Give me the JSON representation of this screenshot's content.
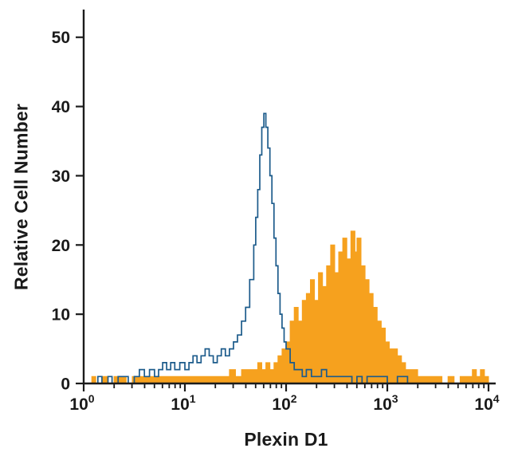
{
  "chart_data": {
    "type": "area",
    "subtype": "flow-cytometry-overlay-histogram",
    "title": "",
    "xlabel": "Plexin D1",
    "ylabel": "Relative Cell Number",
    "x_scale": "log10",
    "x_log_range": [
      0,
      4
    ],
    "y_range": [
      0,
      54
    ],
    "y_ticks": [
      0,
      10,
      20,
      30,
      40,
      50
    ],
    "x_tick_base": "10",
    "x_tick_exponents": [
      "0",
      "1",
      "2",
      "3",
      "4"
    ],
    "grid": "off",
    "legend": "none",
    "axis_color": "#1c1c1c",
    "series": [
      {
        "name": "filled-stained-population",
        "style": "filled",
        "color": "#f6a11e",
        "points": [
          [
            0.0,
            0
          ],
          [
            0.08,
            1
          ],
          [
            0.12,
            0
          ],
          [
            0.18,
            1
          ],
          [
            0.24,
            0
          ],
          [
            0.3,
            1
          ],
          [
            0.36,
            1
          ],
          [
            0.42,
            0
          ],
          [
            0.48,
            1
          ],
          [
            0.54,
            1
          ],
          [
            0.6,
            1
          ],
          [
            0.66,
            1
          ],
          [
            0.72,
            1
          ],
          [
            0.78,
            1
          ],
          [
            0.84,
            1
          ],
          [
            0.9,
            1
          ],
          [
            0.96,
            1
          ],
          [
            1.02,
            1
          ],
          [
            1.08,
            1
          ],
          [
            1.14,
            1
          ],
          [
            1.2,
            1
          ],
          [
            1.26,
            1
          ],
          [
            1.32,
            1
          ],
          [
            1.38,
            1
          ],
          [
            1.44,
            2
          ],
          [
            1.5,
            1
          ],
          [
            1.56,
            2
          ],
          [
            1.62,
            2
          ],
          [
            1.68,
            2
          ],
          [
            1.72,
            3
          ],
          [
            1.76,
            2
          ],
          [
            1.8,
            3
          ],
          [
            1.84,
            2
          ],
          [
            1.88,
            3
          ],
          [
            1.92,
            4
          ],
          [
            1.96,
            5
          ],
          [
            2.0,
            6
          ],
          [
            2.04,
            9
          ],
          [
            2.08,
            11
          ],
          [
            2.12,
            9
          ],
          [
            2.16,
            12
          ],
          [
            2.2,
            13
          ],
          [
            2.24,
            15
          ],
          [
            2.28,
            12
          ],
          [
            2.32,
            16
          ],
          [
            2.36,
            14
          ],
          [
            2.4,
            17
          ],
          [
            2.44,
            20
          ],
          [
            2.48,
            16
          ],
          [
            2.52,
            19
          ],
          [
            2.56,
            21
          ],
          [
            2.6,
            18
          ],
          [
            2.64,
            22
          ],
          [
            2.68,
            19
          ],
          [
            2.7,
            21
          ],
          [
            2.74,
            17
          ],
          [
            2.78,
            15
          ],
          [
            2.82,
            13
          ],
          [
            2.86,
            11
          ],
          [
            2.9,
            9
          ],
          [
            2.94,
            8
          ],
          [
            2.98,
            6
          ],
          [
            3.02,
            5
          ],
          [
            3.06,
            5
          ],
          [
            3.1,
            4
          ],
          [
            3.14,
            3
          ],
          [
            3.18,
            2
          ],
          [
            3.24,
            2
          ],
          [
            3.3,
            1
          ],
          [
            3.36,
            1
          ],
          [
            3.42,
            1
          ],
          [
            3.48,
            1
          ],
          [
            3.54,
            0
          ],
          [
            3.6,
            1
          ],
          [
            3.66,
            0
          ],
          [
            3.72,
            1
          ],
          [
            3.78,
            1
          ],
          [
            3.84,
            2
          ],
          [
            3.88,
            1
          ],
          [
            3.92,
            2
          ],
          [
            3.96,
            1
          ],
          [
            4.0,
            0
          ]
        ]
      },
      {
        "name": "open-control-population",
        "style": "open",
        "color": "#1c5b8b",
        "points": [
          [
            0.0,
            0
          ],
          [
            0.1,
            0
          ],
          [
            0.14,
            1
          ],
          [
            0.18,
            0
          ],
          [
            0.24,
            1
          ],
          [
            0.28,
            0
          ],
          [
            0.34,
            1
          ],
          [
            0.4,
            1
          ],
          [
            0.44,
            0
          ],
          [
            0.5,
            1
          ],
          [
            0.55,
            2
          ],
          [
            0.6,
            1
          ],
          [
            0.65,
            2
          ],
          [
            0.7,
            1
          ],
          [
            0.74,
            2
          ],
          [
            0.78,
            3
          ],
          [
            0.82,
            2
          ],
          [
            0.86,
            3
          ],
          [
            0.9,
            2
          ],
          [
            0.95,
            3
          ],
          [
            1.0,
            2
          ],
          [
            1.04,
            3
          ],
          [
            1.08,
            4
          ],
          [
            1.12,
            3
          ],
          [
            1.16,
            4
          ],
          [
            1.2,
            5
          ],
          [
            1.24,
            4
          ],
          [
            1.28,
            3
          ],
          [
            1.32,
            4
          ],
          [
            1.36,
            5
          ],
          [
            1.4,
            4
          ],
          [
            1.44,
            5
          ],
          [
            1.48,
            6
          ],
          [
            1.52,
            7
          ],
          [
            1.56,
            9
          ],
          [
            1.6,
            11
          ],
          [
            1.64,
            15
          ],
          [
            1.68,
            20
          ],
          [
            1.7,
            24
          ],
          [
            1.72,
            28
          ],
          [
            1.74,
            33
          ],
          [
            1.76,
            37
          ],
          [
            1.78,
            39
          ],
          [
            1.8,
            37
          ],
          [
            1.82,
            34
          ],
          [
            1.84,
            30
          ],
          [
            1.86,
            26
          ],
          [
            1.88,
            21
          ],
          [
            1.9,
            17
          ],
          [
            1.92,
            13
          ],
          [
            1.94,
            10
          ],
          [
            1.96,
            8
          ],
          [
            1.98,
            6
          ],
          [
            2.0,
            5
          ],
          [
            2.04,
            3
          ],
          [
            2.08,
            2
          ],
          [
            2.12,
            2
          ],
          [
            2.16,
            1
          ],
          [
            2.2,
            2
          ],
          [
            2.25,
            1
          ],
          [
            2.3,
            1
          ],
          [
            2.35,
            2
          ],
          [
            2.4,
            1
          ],
          [
            2.45,
            1
          ],
          [
            2.5,
            1
          ],
          [
            2.55,
            1
          ],
          [
            2.6,
            1
          ],
          [
            2.65,
            0
          ],
          [
            2.7,
            1
          ],
          [
            2.75,
            0
          ],
          [
            2.8,
            1
          ],
          [
            2.9,
            1
          ],
          [
            3.0,
            0
          ],
          [
            3.1,
            1
          ],
          [
            3.2,
            0
          ],
          [
            3.4,
            0
          ],
          [
            4.0,
            0
          ]
        ]
      }
    ]
  }
}
